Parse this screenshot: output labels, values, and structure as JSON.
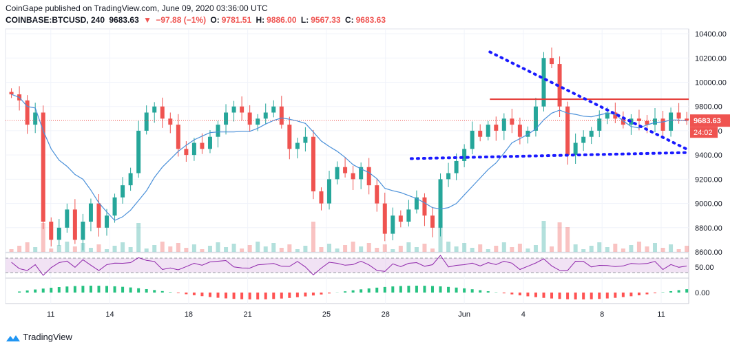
{
  "header": {
    "publisher_line": "CoinGape published on TradingView.com, June 09, 2020 03:36:00 UTC",
    "symbol": "COINBASE:BTCUSD, 240",
    "last": "9683.63",
    "arrow": "▼",
    "change": "−97.88 (−1%)",
    "o_label": "O:",
    "o_value": "9781.51",
    "h_label": "H:",
    "h_value": "9886.00",
    "l_label": "L:",
    "l_value": "9567.33",
    "c_label": "C:",
    "c_value": "9683.63"
  },
  "footer": {
    "logo_text": "TradingView"
  },
  "colors": {
    "up": "#26a69a",
    "down": "#ef5350",
    "ma": "#4a90d9",
    "rsi": "#8e24aa",
    "trend_blue": "#1a1aff",
    "resistance_red": "#e53935"
  },
  "chart_data": {
    "type": "candlestick",
    "symbol": "COINBASE:BTCUSD",
    "interval": "240",
    "ylim": [
      8600,
      10440
    ],
    "y_ticks": [
      "10400.00",
      "10200.00",
      "10000.00",
      "9800.00",
      "9600.00",
      "9400.00",
      "9200.00",
      "9000.00",
      "8800.00",
      "8600.00"
    ],
    "x_ticks": [
      {
        "label": "11",
        "day": 11
      },
      {
        "label": "14",
        "day": 14
      },
      {
        "label": "18",
        "day": 18
      },
      {
        "label": "21",
        "day": 21
      },
      {
        "label": "25",
        "day": 25
      },
      {
        "label": "28",
        "day": 28
      },
      {
        "label": "Jun",
        "day": 32
      },
      {
        "label": "4",
        "day": 35
      },
      {
        "label": "8",
        "day": 39
      },
      {
        "label": "11",
        "day": 42
      }
    ],
    "x_range_days": [
      8.7,
      43.4
    ],
    "price_label": "9683.63",
    "countdown_label": "24:02",
    "close_series": [
      9900,
      9850,
      9650,
      9750,
      8850,
      8700,
      8800,
      8950,
      8700,
      8850,
      9000,
      8800,
      8900,
      9050,
      9150,
      9250,
      9600,
      9750,
      9800,
      9700,
      9650,
      9450,
      9400,
      9500,
      9450,
      9550,
      9650,
      9750,
      9800,
      9750,
      9650,
      9700,
      9750,
      9800,
      9650,
      9450,
      9500,
      9550,
      9100,
      9000,
      9200,
      9300,
      9250,
      9200,
      9300,
      9150,
      9000,
      8750,
      8900,
      8850,
      8950,
      9050,
      8900,
      8800,
      9200,
      9250,
      9350,
      9450,
      9600,
      9550,
      9650,
      9600,
      9700,
      9650,
      9550,
      9600,
      9800,
      10200,
      10150,
      9800,
      9400,
      9500,
      9550,
      9600,
      9700,
      9750,
      9700,
      9650,
      9700,
      9680,
      9650,
      9700,
      9600,
      9750,
      9700,
      9683.63
    ],
    "annotations": {
      "resistance_level": 9860,
      "descending_trendline": [
        {
          "day": 33.3,
          "price": 10250
        },
        {
          "day": 43.4,
          "price": 9440
        }
      ],
      "ascending_trendline": [
        {
          "day": 29.3,
          "price": 9370
        },
        {
          "day": 43.4,
          "price": 9420
        }
      ]
    },
    "indicators": {
      "rsi": {
        "level_label": "50.00",
        "upper": 70,
        "lower": 30
      },
      "macd": {
        "level_label": "0.00"
      }
    }
  }
}
